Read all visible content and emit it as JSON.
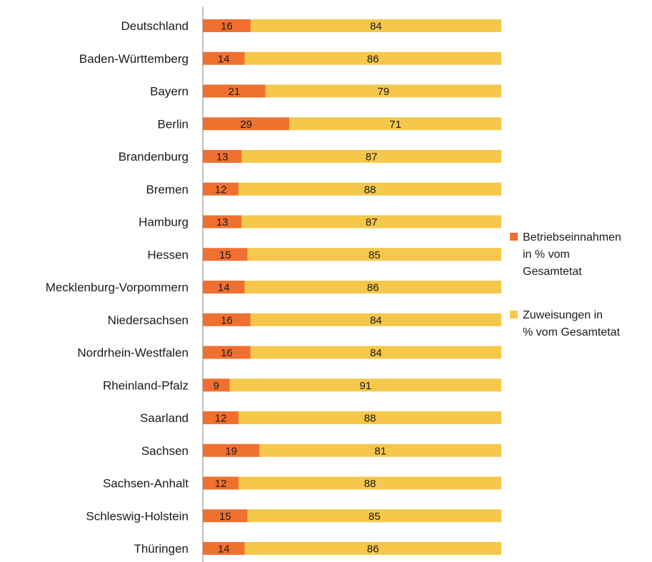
{
  "chart_data": {
    "type": "bar",
    "orientation": "horizontal",
    "stacked": true,
    "categories": [
      "Deutschland",
      "Baden-Württemberg",
      "Bayern",
      "Berlin",
      "Brandenburg",
      "Bremen",
      "Hamburg",
      "Hessen",
      "Mecklenburg-Vorpommern",
      "Niedersachsen",
      "Nordrhein-Westfalen",
      "Rheinland-Pfalz",
      "Saarland",
      "Sachsen",
      "Sachsen-Anhalt",
      "Schleswig-Holstein",
      "Thüringen"
    ],
    "series": [
      {
        "name": "Betriebseinnahmen in % vom Gesamtetat",
        "legend_lines": [
          "Betriebseinnahmen",
          "in % vom",
          "Gesamtetat"
        ],
        "color": "#f07030",
        "values": [
          16,
          14,
          21,
          29,
          13,
          12,
          13,
          15,
          14,
          16,
          16,
          9,
          12,
          19,
          12,
          15,
          14
        ]
      },
      {
        "name": "Zuweisungen in % vom Gesamtetat",
        "legend_lines": [
          "Zuweisungen in",
          "% vom Gesamtetat"
        ],
        "color": "#f5c84b",
        "values": [
          84,
          86,
          79,
          71,
          87,
          88,
          87,
          85,
          86,
          84,
          84,
          91,
          88,
          81,
          88,
          85,
          86
        ]
      }
    ],
    "xlim": [
      0,
      100
    ],
    "grid": false,
    "legend_position": "right"
  }
}
